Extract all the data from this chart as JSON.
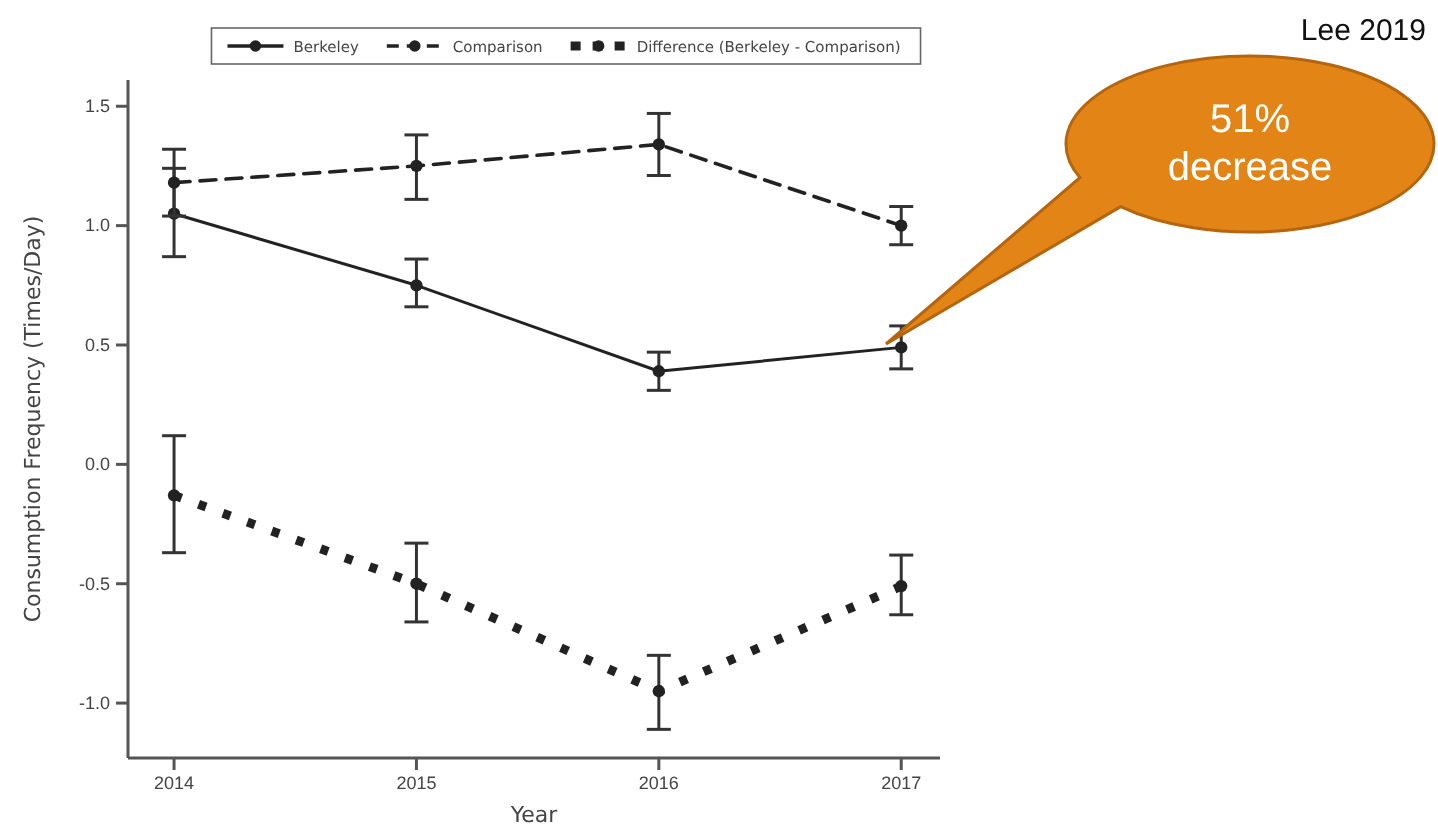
{
  "chart_data": {
    "type": "line",
    "xlabel": "Year",
    "ylabel": "Consumption Frequency (Times/Day)",
    "x": [
      2014,
      2015,
      2016,
      2017
    ],
    "xlim": [
      2013.81,
      2017.16
    ],
    "xticks": [
      2014,
      2015,
      2016,
      2017
    ],
    "ylim": [
      -1.23,
      1.61
    ],
    "yticks": [
      {
        "value": -1,
        "label": "-1.0"
      },
      {
        "value": -0.5,
        "label": "-0.5"
      },
      {
        "value": 0,
        "label": "0.0"
      },
      {
        "value": 0.5,
        "label": "0.5"
      },
      {
        "value": 1,
        "label": "1.0"
      },
      {
        "value": 1.5,
        "label": "1.5"
      }
    ],
    "series": [
      {
        "name": "Berkeley",
        "color": "#222222",
        "line_style": "solid",
        "values": [
          1.05,
          0.75,
          0.39,
          0.49
        ],
        "errors": [
          [
            0.87,
            1.24
          ],
          [
            0.66,
            0.86
          ],
          [
            0.31,
            0.47
          ],
          [
            0.4,
            0.58
          ]
        ]
      },
      {
        "name": "Comparison",
        "color": "#222222",
        "line_style": "dashed",
        "values": [
          1.18,
          1.25,
          1.34,
          1.0
        ],
        "errors": [
          [
            1.04,
            1.32
          ],
          [
            1.11,
            1.38
          ],
          [
            1.21,
            1.47
          ],
          [
            0.92,
            1.08
          ]
        ]
      },
      {
        "name": "Difference (Berkeley - Comparison)",
        "color": "#222222",
        "line_style": "dotted",
        "values": [
          -0.13,
          -0.5,
          -0.95,
          -0.51
        ],
        "errors": [
          [
            -0.37,
            0.12
          ],
          [
            -0.66,
            -0.33
          ],
          [
            -1.11,
            -0.8
          ],
          [
            -0.63,
            -0.38
          ]
        ]
      }
    ],
    "marker": "circle",
    "legend": "top",
    "grid": false,
    "annotations": [
      "Lee 2019",
      "51% decrease"
    ]
  }
}
